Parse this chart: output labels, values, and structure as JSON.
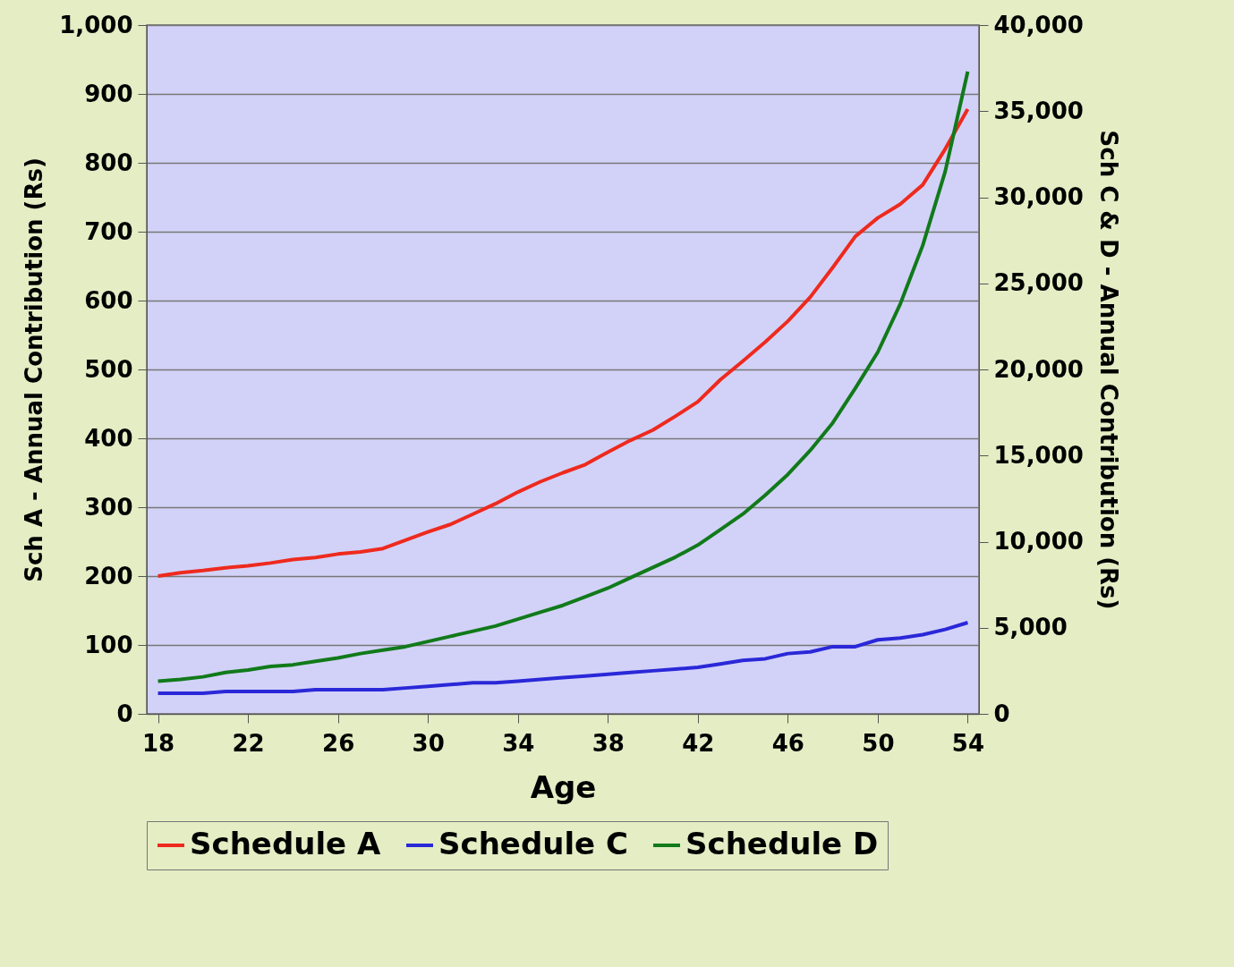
{
  "chart_data": {
    "type": "line",
    "xlabel": "Age",
    "ylabel": "Sch A - Annual Contribution (Rs)",
    "y2label": "Sch C & D - Annual Contribution (Rs)",
    "x": [
      18,
      19,
      20,
      21,
      22,
      23,
      24,
      25,
      26,
      27,
      28,
      29,
      30,
      31,
      32,
      33,
      34,
      35,
      36,
      37,
      38,
      39,
      40,
      41,
      42,
      43,
      44,
      45,
      46,
      47,
      48,
      49,
      50,
      51,
      52,
      53,
      54
    ],
    "series": [
      {
        "name": "Schedule A",
        "color": "#ee2a1e",
        "values": [
          200,
          205,
          208,
          212,
          215,
          219,
          224,
          227,
          232,
          235,
          240,
          252,
          264,
          275,
          290,
          305,
          322,
          337,
          350,
          362,
          380,
          397,
          412,
          432,
          453,
          485,
          512,
          540,
          570,
          605,
          648,
          693,
          720,
          740,
          768,
          820,
          878
        ]
      },
      {
        "name": "Schedule C",
        "color": "#2a28d8",
        "axis": "y2",
        "values": [
          1200,
          1200,
          1200,
          1300,
          1300,
          1300,
          1300,
          1400,
          1400,
          1400,
          1400,
          1500,
          1600,
          1700,
          1800,
          1800,
          1900,
          2000,
          2100,
          2200,
          2300,
          2400,
          2500,
          2600,
          2700,
          2900,
          3100,
          3200,
          3500,
          3600,
          3900,
          3900,
          4300,
          4400,
          4600,
          4900,
          5300
        ]
      },
      {
        "name": "Schedule D",
        "color": "#117a1a",
        "axis": "y2",
        "values": [
          1900,
          2000,
          2150,
          2400,
          2550,
          2750,
          2850,
          3050,
          3250,
          3500,
          3700,
          3900,
          4200,
          4500,
          4800,
          5100,
          5500,
          5900,
          6300,
          6800,
          7300,
          7900,
          8500,
          9100,
          9800,
          10700,
          11600,
          12700,
          13900,
          15300,
          16900,
          18900,
          21000,
          23800,
          27200,
          31500,
          37300
        ]
      }
    ],
    "xlim": [
      17.5,
      54.5
    ],
    "xticks": [
      18,
      22,
      26,
      30,
      34,
      38,
      42,
      46,
      50,
      54
    ],
    "ylim": [
      0,
      1000
    ],
    "yticks": [
      0,
      100,
      200,
      300,
      400,
      500,
      600,
      700,
      800,
      900,
      {
        "value": 1000,
        "label": "1,000"
      }
    ],
    "y2lim": [
      0,
      40000
    ],
    "y2ticks": [
      0,
      {
        "value": 5000,
        "label": "5,000"
      },
      {
        "value": 10000,
        "label": "10,000"
      },
      {
        "value": 15000,
        "label": "15,000"
      },
      {
        "value": 20000,
        "label": "20,000"
      },
      {
        "value": 25000,
        "label": "25,000"
      },
      {
        "value": 30000,
        "label": "30,000"
      },
      {
        "value": 35000,
        "label": "35,000"
      },
      {
        "value": 40000,
        "label": "40,000"
      }
    ],
    "grid": "y",
    "legend": "bottom",
    "marker": "none",
    "line_style": "solid"
  }
}
